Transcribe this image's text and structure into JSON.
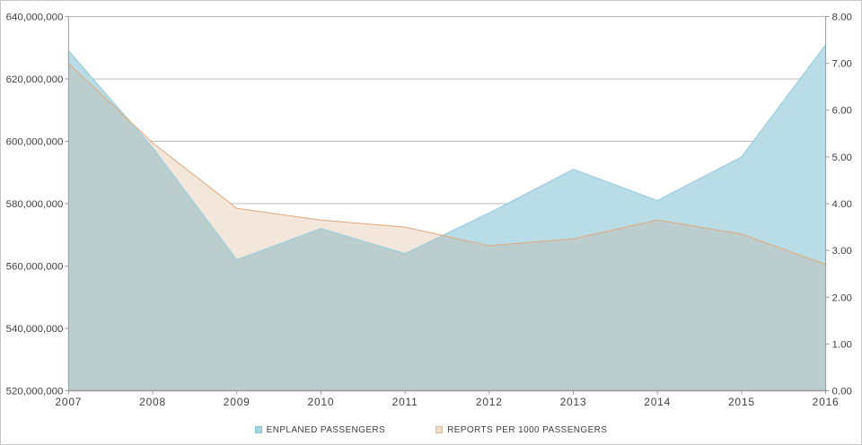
{
  "figure": {
    "background": "#ffffff",
    "border_color": "#c8c8c8"
  },
  "chart_data": {
    "type": "area",
    "title": "",
    "x_categories": [
      "2007",
      "2008",
      "2009",
      "2010",
      "2011",
      "2012",
      "2013",
      "2014",
      "2015",
      "2016"
    ],
    "series": [
      {
        "name": "ENPLANED PASSENGERS",
        "axis": "left",
        "fill": "#b8dde6",
        "edge": "#9bcedd",
        "legend_swatch": "#a5d5dd",
        "legend_swatch_border": "#8fc5d2",
        "values": [
          629000000,
          598000000,
          562000000,
          572000000,
          564000000,
          577000000,
          591000000,
          581000000,
          595000000,
          631000000
        ]
      },
      {
        "name": "REPORTS PER 1000 PASSENGERS",
        "axis": "right",
        "fill": "#f3e6db",
        "edge": "#e0a87c",
        "legend_swatch": "#f1ddcf",
        "legend_swatch_border": "#dcb796",
        "values": [
          7.0,
          5.3,
          3.9,
          3.65,
          3.5,
          3.1,
          3.25,
          3.65,
          3.35,
          2.7
        ]
      }
    ],
    "overlap_fill": "#bccdcd",
    "left_axis": {
      "min": 520000000,
      "max": 640000000,
      "tick_step": 20000000,
      "tick_labels_top_to_bottom": [
        "640,000,000",
        "620,000,000",
        "600,000,000",
        "580,000,000",
        "560,000,000",
        "540,000,000",
        "520,000,000"
      ]
    },
    "right_axis": {
      "min": 0,
      "max": 8,
      "tick_step": 1,
      "tick_labels_top_to_bottom": [
        "8.00",
        "7.00",
        "6.00",
        "5.00",
        "4.00",
        "3.00",
        "2.00",
        "1.00",
        "0.00"
      ]
    },
    "grid_color": "#b9b9b9",
    "axis_color": "#9a9a9a",
    "tick_label_color": "#3f3f3f",
    "gridlines": "horizontal at left-axis major units, drawn behind series",
    "legend_position": "bottom-center"
  }
}
